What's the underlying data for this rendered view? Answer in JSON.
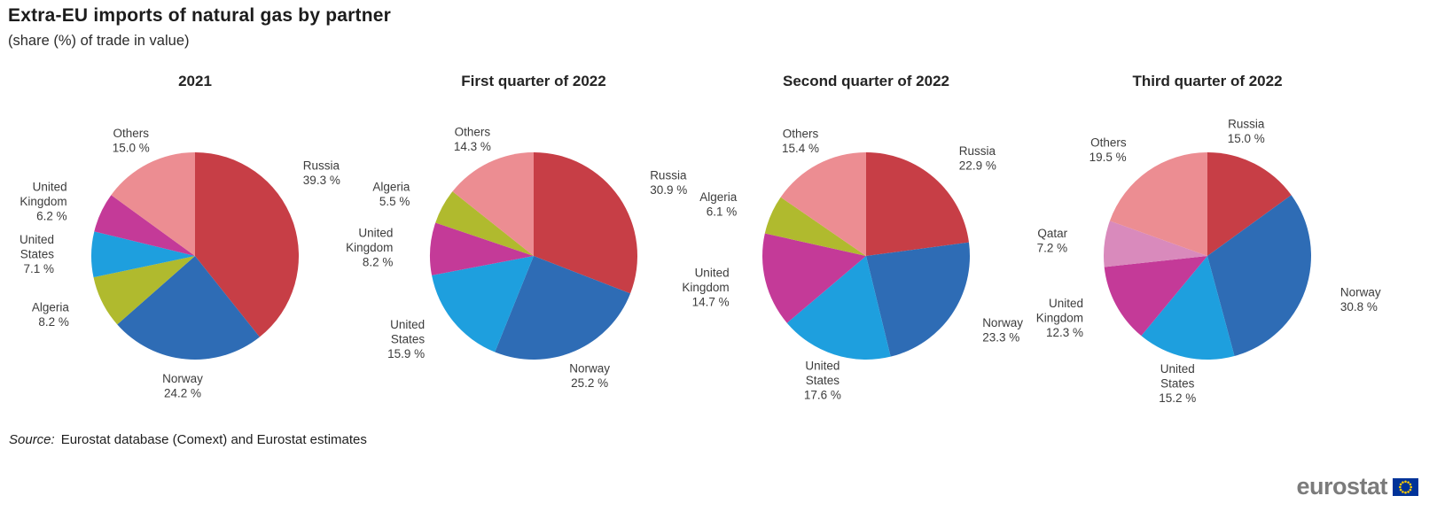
{
  "header": {
    "title": "Extra-EU imports of natural gas by partner",
    "subtitle": "(share (%) of trade in value)"
  },
  "source": {
    "prefix": "Source:",
    "text": "Eurostat database (Comext) and Eurostat estimates"
  },
  "logo": {
    "text": "eurostat",
    "flag_color": "#003399",
    "star_color": "#ffcc00"
  },
  "palette": {
    "Russia": "#c73e46",
    "Norway": "#2e6cb5",
    "United States": "#1e9fde",
    "United Kingdom": "#c43a98",
    "Algeria": "#b0ba2e",
    "Qatar": "#d98abc",
    "Others": "#ec8d92"
  },
  "chart_data": [
    {
      "type": "pie",
      "title": "2021",
      "start_angle": 0,
      "direction": "clockwise",
      "labels_position": "outside",
      "slices": [
        {
          "label": "Russia",
          "lines": [
            "Russia"
          ],
          "value": 39.3,
          "pct": "39.3 %",
          "label_angle": 50
        },
        {
          "label": "Norway",
          "lines": [
            "Norway"
          ],
          "value": 24.2,
          "pct": "24.2 %"
        },
        {
          "label": "Algeria",
          "lines": [
            "Algeria"
          ],
          "value": 8.2,
          "pct": "8.2 %"
        },
        {
          "label": "United States",
          "lines": [
            "United",
            "States"
          ],
          "value": 7.1,
          "pct": "7.1 %"
        },
        {
          "label": "United Kingdom",
          "lines": [
            "United",
            "Kingdom"
          ],
          "value": 6.2,
          "pct": "6.2 %"
        },
        {
          "label": "Others",
          "lines": [
            "Others"
          ],
          "value": 15.0,
          "pct": "15.0 %"
        }
      ]
    },
    {
      "type": "pie",
      "title": "First quarter of 2022",
      "start_angle": 0,
      "direction": "clockwise",
      "labels_position": "outside",
      "slices": [
        {
          "label": "Russia",
          "lines": [
            "Russia"
          ],
          "value": 30.9,
          "pct": "30.9 %"
        },
        {
          "label": "Norway",
          "lines": [
            "Norway"
          ],
          "value": 25.2,
          "pct": "25.2 %"
        },
        {
          "label": "United States",
          "lines": [
            "United",
            "States"
          ],
          "value": 15.9,
          "pct": "15.9 %"
        },
        {
          "label": "United Kingdom",
          "lines": [
            "United",
            "Kingdom"
          ],
          "value": 8.2,
          "pct": "8.2 %"
        },
        {
          "label": "Algeria",
          "lines": [
            "Algeria"
          ],
          "value": 5.5,
          "pct": "5.5 %"
        },
        {
          "label": "Others",
          "lines": [
            "Others"
          ],
          "value": 14.3,
          "pct": "14.3 %"
        }
      ]
    },
    {
      "type": "pie",
      "title": "Second quarter of 2022",
      "start_angle": 0,
      "direction": "clockwise",
      "labels_position": "outside",
      "slices": [
        {
          "label": "Russia",
          "lines": [
            "Russia"
          ],
          "value": 22.9,
          "pct": "22.9 %"
        },
        {
          "label": "Norway",
          "lines": [
            "Norway"
          ],
          "value": 23.3,
          "pct": "23.3 %"
        },
        {
          "label": "United States",
          "lines": [
            "United",
            "States"
          ],
          "value": 17.6,
          "pct": "17.6 %"
        },
        {
          "label": "United Kingdom",
          "lines": [
            "United",
            "Kingdom"
          ],
          "value": 14.7,
          "pct": "14.7 %"
        },
        {
          "label": "Algeria",
          "lines": [
            "Algeria"
          ],
          "value": 6.1,
          "pct": "6.1 %"
        },
        {
          "label": "Others",
          "lines": [
            "Others"
          ],
          "value": 15.4,
          "pct": "15.4 %"
        }
      ]
    },
    {
      "type": "pie",
      "title": "Third quarter of 2022",
      "start_angle": 0,
      "direction": "clockwise",
      "labels_position": "outside",
      "slices": [
        {
          "label": "Russia",
          "lines": [
            "Russia"
          ],
          "value": 15.0,
          "pct": "15.0 %",
          "label_angle": 16
        },
        {
          "label": "Norway",
          "lines": [
            "Norway"
          ],
          "value": 30.8,
          "pct": "30.8 %"
        },
        {
          "label": "United States",
          "lines": [
            "United",
            "States"
          ],
          "value": 15.2,
          "pct": "15.2 %"
        },
        {
          "label": "United Kingdom",
          "lines": [
            "United",
            "Kingdom"
          ],
          "value": 12.3,
          "pct": "12.3 %"
        },
        {
          "label": "Qatar",
          "lines": [
            "Qatar"
          ],
          "value": 7.2,
          "pct": "7.2 %"
        },
        {
          "label": "Others",
          "lines": [
            "Others"
          ],
          "value": 19.5,
          "pct": "19.5 %"
        }
      ]
    }
  ]
}
